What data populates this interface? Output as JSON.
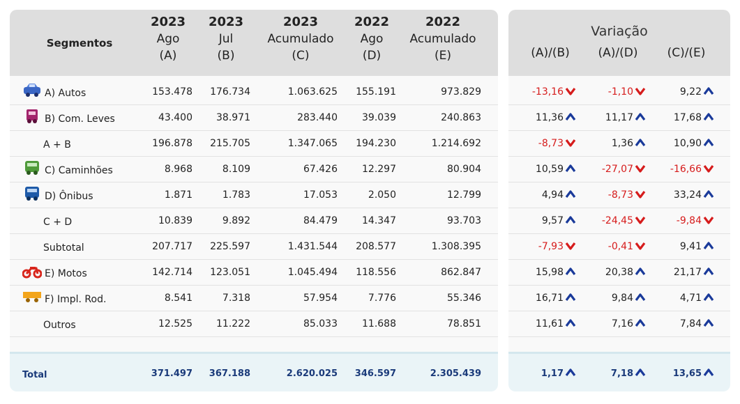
{
  "colors": {
    "negative": "#d61c1c",
    "positive_arrow": "#1a3a9a",
    "header_bg": "#dedede",
    "total_text": "#1a3a7a"
  },
  "header": {
    "segmentos": "Segmentos",
    "columns": [
      {
        "year": "2023",
        "period": "Ago",
        "key": "(A)"
      },
      {
        "year": "2023",
        "period": "Jul",
        "key": "(B)"
      },
      {
        "year": "2023",
        "period": "Acumulado",
        "key": "(C)"
      },
      {
        "year": "2022",
        "period": "Ago",
        "key": "(D)"
      },
      {
        "year": "2022",
        "period": "Acumulado",
        "key": "(E)"
      }
    ]
  },
  "variacao": {
    "title": "Variação",
    "columns": [
      "(A)/(B)",
      "(A)/(D)",
      "(C)/(E)"
    ]
  },
  "rows": [
    {
      "segment": "A) Autos",
      "icon": "car-icon",
      "a": "153.478",
      "b": "176.734",
      "c": "1.063.625",
      "d": "155.191",
      "e": "973.829",
      "v1": "-13,16",
      "v1dir": "down",
      "v2": "-1,10",
      "v2dir": "down",
      "v3": "9,22",
      "v3dir": "up"
    },
    {
      "segment": "B) Com. Leves",
      "icon": "light-truck-icon",
      "a": "43.400",
      "b": "38.971",
      "c": "283.440",
      "d": "39.039",
      "e": "240.863",
      "v1": "11,36",
      "v1dir": "up",
      "v2": "11,17",
      "v2dir": "up",
      "v3": "17,68",
      "v3dir": "up"
    },
    {
      "segment": "A + B",
      "icon": "",
      "a": "196.878",
      "b": "215.705",
      "c": "1.347.065",
      "d": "194.230",
      "e": "1.214.692",
      "v1": "-8,73",
      "v1dir": "down",
      "v2": "1,36",
      "v2dir": "up",
      "v3": "10,90",
      "v3dir": "up"
    },
    {
      "segment": "C) Caminhões",
      "icon": "truck-icon",
      "a": "8.968",
      "b": "8.109",
      "c": "67.426",
      "d": "12.297",
      "e": "80.904",
      "v1": "10,59",
      "v1dir": "up",
      "v2": "-27,07",
      "v2dir": "down",
      "v3": "-16,66",
      "v3dir": "down"
    },
    {
      "segment": "D) Ônibus",
      "icon": "bus-icon",
      "a": "1.871",
      "b": "1.783",
      "c": "17.053",
      "d": "2.050",
      "e": "12.799",
      "v1": "4,94",
      "v1dir": "up",
      "v2": "-8,73",
      "v2dir": "down",
      "v3": "33,24",
      "v3dir": "up"
    },
    {
      "segment": "C + D",
      "icon": "",
      "a": "10.839",
      "b": "9.892",
      "c": "84.479",
      "d": "14.347",
      "e": "93.703",
      "v1": "9,57",
      "v1dir": "up",
      "v2": "-24,45",
      "v2dir": "down",
      "v3": "-9,84",
      "v3dir": "down"
    },
    {
      "segment": "Subtotal",
      "icon": "",
      "a": "207.717",
      "b": "225.597",
      "c": "1.431.544",
      "d": "208.577",
      "e": "1.308.395",
      "v1": "-7,93",
      "v1dir": "down",
      "v2": "-0,41",
      "v2dir": "down",
      "v3": "9,41",
      "v3dir": "up"
    },
    {
      "segment": "E) Motos",
      "icon": "motorcycle-icon",
      "a": "142.714",
      "b": "123.051",
      "c": "1.045.494",
      "d": "118.556",
      "e": "862.847",
      "v1": "15,98",
      "v1dir": "up",
      "v2": "20,38",
      "v2dir": "up",
      "v3": "21,17",
      "v3dir": "up"
    },
    {
      "segment": "F) Impl. Rod.",
      "icon": "trailer-icon",
      "a": "8.541",
      "b": "7.318",
      "c": "57.954",
      "d": "7.776",
      "e": "55.346",
      "v1": "16,71",
      "v1dir": "up",
      "v2": "9,84",
      "v2dir": "up",
      "v3": "4,71",
      "v3dir": "up"
    },
    {
      "segment": "Outros",
      "icon": "",
      "a": "12.525",
      "b": "11.222",
      "c": "85.033",
      "d": "11.688",
      "e": "78.851",
      "v1": "11,61",
      "v1dir": "up",
      "v2": "7,16",
      "v2dir": "up",
      "v3": "7,84",
      "v3dir": "up"
    }
  ],
  "total": {
    "segment": "Total",
    "a": "371.497",
    "b": "367.188",
    "c": "2.620.025",
    "d": "346.597",
    "e": "2.305.439",
    "v1": "1,17",
    "v1dir": "up",
    "v2": "7,18",
    "v2dir": "up",
    "v3": "13,65",
    "v3dir": "up"
  }
}
